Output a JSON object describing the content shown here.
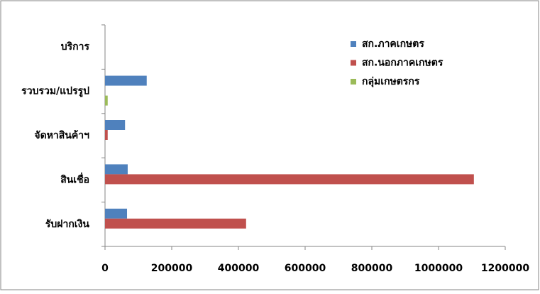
{
  "chart_data": {
    "type": "hbar",
    "categories": [
      "บริการ",
      "รวบรวม/แปรรูป",
      "จัดหาสินค้าฯ",
      "สินเชื่อ",
      "รับฝากเงิน"
    ],
    "series": [
      {
        "name": "สก.ภาคเกษตร",
        "color": "#4f81bd",
        "values": [
          0,
          125000,
          60000,
          68000,
          66000
        ]
      },
      {
        "name": "สก.นอกภาคเกษตร",
        "color": "#c0504d",
        "values": [
          0,
          0,
          8000,
          1106000,
          423000
        ]
      },
      {
        "name": "กลุ่มเกษตรกร",
        "color": "#9bbb59",
        "values": [
          0,
          8000,
          0,
          0,
          0
        ]
      }
    ],
    "xlim": [
      0,
      1200000
    ],
    "xticks": [
      0,
      200000,
      400000,
      600000,
      800000,
      1000000,
      1200000
    ],
    "legend": "top-right"
  }
}
